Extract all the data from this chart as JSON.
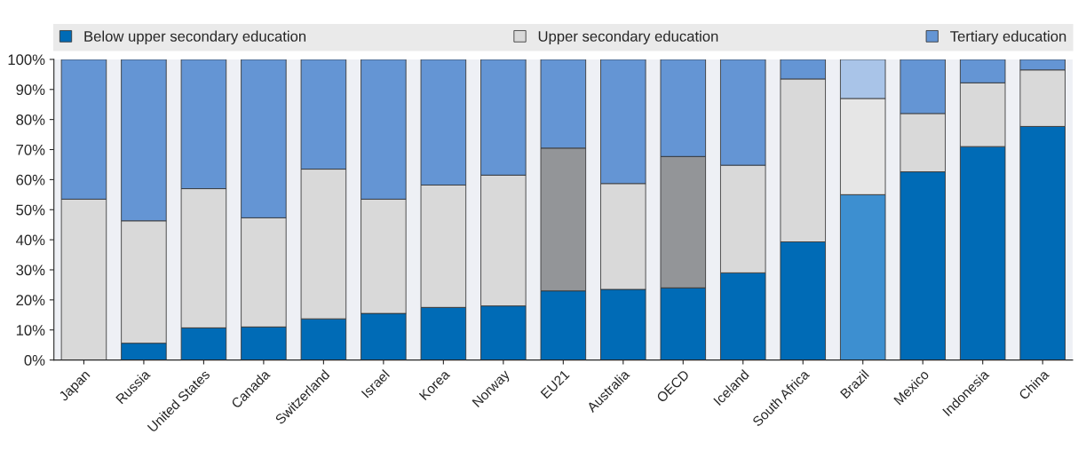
{
  "chart_data": {
    "type": "bar",
    "stacked": true,
    "categories": [
      "Japan",
      "Russia",
      "United States",
      "Canada",
      "Switzerland",
      "Israel",
      "Korea",
      "Norway",
      "EU21",
      "Australia",
      "OECD",
      "Iceland",
      "South Africa",
      "Brazil",
      "Mexico",
      "Indonesia",
      "China"
    ],
    "series": [
      {
        "name": "Below upper secondary education",
        "color": "#006bb6",
        "colors": [
          "#006bb6",
          "#006bb6",
          "#006bb6",
          "#006bb6",
          "#006bb6",
          "#006bb6",
          "#006bb6",
          "#006bb6",
          "#006bb6",
          "#006bb6",
          "#006bb6",
          "#006bb6",
          "#006bb6",
          "#3d8fd0",
          "#006bb6",
          "#006bb6",
          "#006bb6"
        ],
        "values": [
          0,
          5.6,
          10.7,
          11,
          13.7,
          15.5,
          17.5,
          18,
          23,
          23.5,
          24,
          29,
          39.3,
          55,
          62.6,
          71,
          77.7
        ]
      },
      {
        "name": "Upper secondary education",
        "color": "#d9d9d9",
        "colors": [
          "#d9d9d9",
          "#d9d9d9",
          "#d9d9d9",
          "#d9d9d9",
          "#d9d9d9",
          "#d9d9d9",
          "#d9d9d9",
          "#d9d9d9",
          "#939598",
          "#d9d9d9",
          "#939598",
          "#d9d9d9",
          "#d9d9d9",
          "#e6e6e6",
          "#d9d9d9",
          "#d9d9d9",
          "#d9d9d9"
        ],
        "values": [
          53.5,
          40.7,
          46.3,
          36.3,
          49.8,
          38,
          40.7,
          43.5,
          47.5,
          35.2,
          43.7,
          35.8,
          54.2,
          32,
          19.4,
          21.2,
          18.8
        ]
      },
      {
        "name": "Tertiary education",
        "color": "#6495d4",
        "colors": [
          "#6495d4",
          "#6495d4",
          "#6495d4",
          "#6495d4",
          "#6495d4",
          "#6495d4",
          "#6495d4",
          "#6495d4",
          "#6495d4",
          "#6495d4",
          "#6495d4",
          "#6495d4",
          "#6495d4",
          "#a9c4e8",
          "#6495d4",
          "#6495d4",
          "#6495d4"
        ],
        "values": [
          46.5,
          53.7,
          43,
          52.7,
          36.5,
          46.5,
          41.8,
          38.5,
          29.5,
          41.3,
          32.3,
          35.2,
          6.5,
          13,
          18,
          7.8,
          3.5
        ]
      }
    ],
    "ylim": [
      0,
      100
    ],
    "yticks": [
      {
        "value": 0,
        "label": "0%"
      },
      {
        "value": 10,
        "label": "10%"
      },
      {
        "value": 20,
        "label": "20%"
      },
      {
        "value": 30,
        "label": "30%"
      },
      {
        "value": 40,
        "label": "40%"
      },
      {
        "value": 50,
        "label": "50%"
      },
      {
        "value": 60,
        "label": "60%"
      },
      {
        "value": 70,
        "label": "70%"
      },
      {
        "value": 80,
        "label": "80%"
      },
      {
        "value": 90,
        "label": "90%"
      },
      {
        "value": 100,
        "label": "100%"
      }
    ],
    "grid": false,
    "legend": "top"
  }
}
